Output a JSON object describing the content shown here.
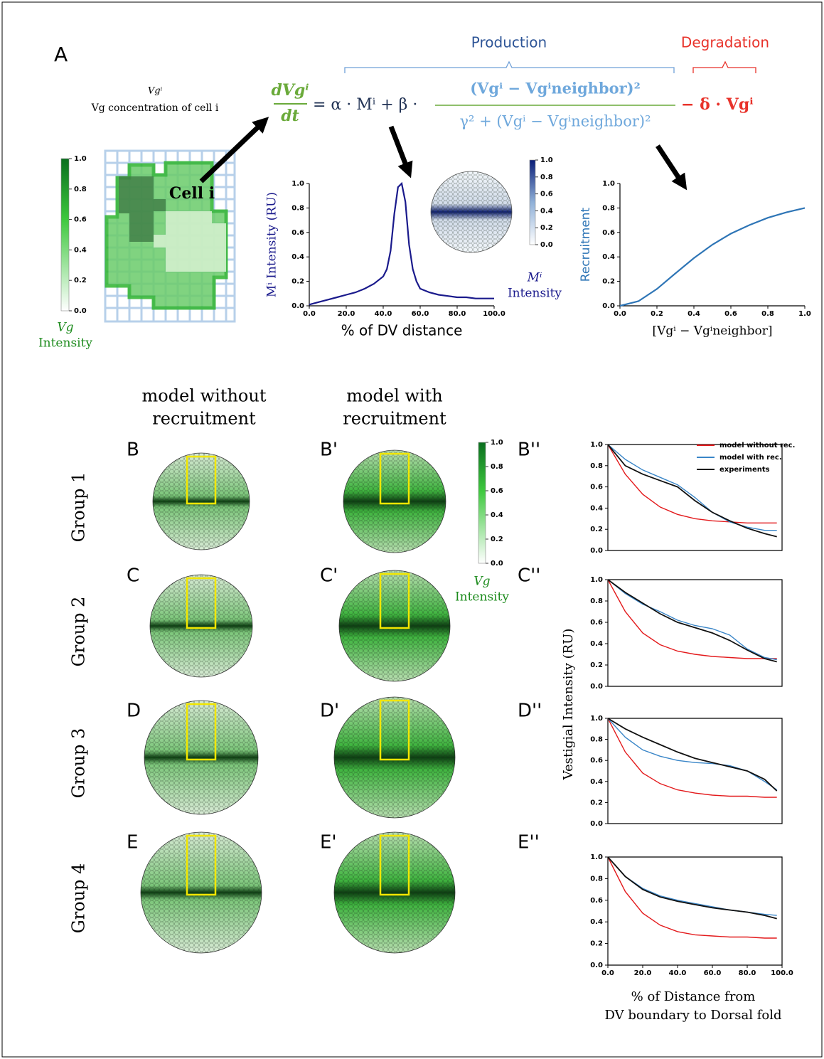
{
  "figure": {
    "panel_a": "A",
    "vg_symbol": "Vgⁱ",
    "vg_caption": "Vg concentration of cell i",
    "cell_label": "Cell i",
    "equation": {
      "lhs_numerator": "dVgⁱ",
      "lhs_denominator": "dt",
      "terms": "= α · Mⁱ + β ·",
      "frac_numerator": "(Vgⁱ − Vgⁱneighbor)²",
      "frac_denominator": "γ² + (Vgⁱ − Vgⁱneighbor)²",
      "degradation_term": "− δ · Vgⁱ"
    },
    "production": "Production",
    "degradation": "Degradation",
    "vg_colorbar_top": {
      "ticks": [
        {
          "value": 0,
          "label": "0.0"
        },
        0.2,
        0.4,
        0.6,
        0.8,
        {
          "value": 1,
          "label": "1.0"
        }
      ],
      "label": [
        "Vg",
        "Intensity"
      ]
    },
    "m_colorbar": {
      "ticks": [
        {
          "value": 0,
          "label": "0.0"
        },
        0.2,
        0.4,
        0.6,
        0.8,
        {
          "value": 1,
          "label": "1.0"
        }
      ],
      "label": [
        "Mⁱ",
        "Intensity"
      ]
    },
    "vg_colorbar_bottom": {
      "ticks": [
        {
          "value": 0,
          "label": "0.0"
        },
        0.2,
        0.4,
        0.6,
        0.8,
        {
          "value": 1,
          "label": "1.0"
        }
      ],
      "label": [
        "Vg",
        "Intensity"
      ]
    },
    "column_titles": [
      [
        "model without",
        "recruitment"
      ],
      [
        "model with",
        "recruitment"
      ]
    ],
    "rows": [
      {
        "group": "Group 1",
        "letters": [
          "B",
          "B'",
          "B''"
        ]
      },
      {
        "group": "Group 2",
        "letters": [
          "C",
          "C'",
          "C''"
        ]
      },
      {
        "group": "Group 3",
        "letters": [
          "D",
          "D'",
          "D''"
        ]
      },
      {
        "group": "Group 4",
        "letters": [
          "E",
          "E'",
          "E''"
        ]
      }
    ],
    "shared_ylabel": "Vestigial Intensity (RU)",
    "shared_xlabel": [
      "% of Distance from",
      "DV boundary to Dorsal fold"
    ]
  },
  "chart_data": [
    {
      "type": "line",
      "xlabel": "% of DV distance",
      "ylabel": "Mⁱ Intensity (RU)",
      "color": "#1a1a8c",
      "x": [
        0,
        5,
        10,
        15,
        20,
        25,
        30,
        35,
        40,
        42,
        44,
        46,
        48,
        50,
        52,
        54,
        56,
        58,
        60,
        65,
        70,
        75,
        80,
        85,
        90,
        95,
        100
      ],
      "values": [
        0.01,
        0.03,
        0.05,
        0.07,
        0.09,
        0.11,
        0.14,
        0.18,
        0.24,
        0.3,
        0.45,
        0.75,
        0.97,
        1.0,
        0.85,
        0.5,
        0.3,
        0.2,
        0.14,
        0.11,
        0.09,
        0.08,
        0.07,
        0.07,
        0.06,
        0.06,
        0.06
      ],
      "xlim": [
        0,
        100
      ],
      "ylim": [
        0,
        1
      ],
      "xticks": [
        {
          "value": 0,
          "label": "0.0"
        },
        {
          "value": 20,
          "label": "20.0"
        },
        {
          "value": 40,
          "label": "40.0"
        },
        {
          "value": 60,
          "label": "60.0"
        },
        {
          "value": 80,
          "label": "80.0"
        },
        {
          "value": 100,
          "label": "100.0"
        }
      ],
      "yticks": [
        {
          "value": 0,
          "label": "0.0"
        },
        0.2,
        0.4,
        0.6,
        0.8,
        {
          "value": 1,
          "label": "1.0"
        }
      ]
    },
    {
      "type": "line",
      "xlabel": "[Vgⁱ − Vgⁱneighbor]",
      "ylabel": "Recruitment",
      "color": "#2e75b6",
      "x": [
        0,
        0.1,
        0.2,
        0.3,
        0.4,
        0.5,
        0.6,
        0.7,
        0.8,
        0.9,
        1.0
      ],
      "values": [
        0,
        0.038,
        0.138,
        0.265,
        0.39,
        0.5,
        0.59,
        0.66,
        0.72,
        0.764,
        0.8
      ],
      "xlim": [
        0,
        1
      ],
      "ylim": [
        0,
        1
      ],
      "xticks": [
        {
          "value": 0,
          "label": "0.0"
        },
        0.2,
        0.4,
        0.6,
        0.8,
        {
          "value": 1,
          "label": "1.0"
        }
      ],
      "yticks": [
        {
          "value": 0,
          "label": "0.0"
        },
        0.2,
        0.4,
        0.6,
        0.8,
        {
          "value": 1,
          "label": "1.0"
        }
      ]
    },
    {
      "type": "line",
      "legend": "upper right",
      "x": [
        0,
        10,
        20,
        30,
        40,
        50,
        60,
        70,
        80,
        90,
        97
      ],
      "xlim": [
        0,
        100
      ],
      "ylim": [
        0,
        1
      ],
      "yticks": [
        {
          "value": 0,
          "label": "0.0"
        },
        0.2,
        0.4,
        0.6,
        0.8,
        {
          "value": 1,
          "label": "1.0"
        }
      ],
      "series": [
        {
          "name": "model without rec.",
          "color": "#e31a1c",
          "values": [
            1.0,
            0.72,
            0.53,
            0.41,
            0.34,
            0.3,
            0.28,
            0.27,
            0.26,
            0.26,
            0.26
          ]
        },
        {
          "name": "model with rec.",
          "color": "#3a86c8",
          "values": [
            1.0,
            0.86,
            0.76,
            0.69,
            0.62,
            0.5,
            0.36,
            0.27,
            0.22,
            0.19,
            0.19
          ]
        },
        {
          "name": "experiments",
          "color": "#111111",
          "values": [
            1.0,
            0.8,
            0.72,
            0.66,
            0.6,
            0.47,
            0.36,
            0.28,
            0.21,
            0.16,
            0.13
          ]
        }
      ]
    },
    {
      "type": "line",
      "x": [
        0,
        10,
        20,
        30,
        40,
        50,
        60,
        70,
        80,
        90,
        97
      ],
      "xlim": [
        0,
        100
      ],
      "ylim": [
        0,
        1
      ],
      "yticks": [
        {
          "value": 0,
          "label": "0.0"
        },
        0.2,
        0.4,
        0.6,
        0.8,
        {
          "value": 1,
          "label": "1.0"
        }
      ],
      "series": [
        {
          "color": "#e31a1c",
          "values": [
            1.0,
            0.7,
            0.5,
            0.39,
            0.33,
            0.3,
            0.28,
            0.27,
            0.26,
            0.26,
            0.26
          ]
        },
        {
          "color": "#3a86c8",
          "values": [
            1.0,
            0.87,
            0.77,
            0.7,
            0.62,
            0.57,
            0.54,
            0.48,
            0.35,
            0.27,
            0.25
          ]
        },
        {
          "color": "#111111",
          "values": [
            1.0,
            0.88,
            0.78,
            0.68,
            0.6,
            0.55,
            0.5,
            0.43,
            0.34,
            0.26,
            0.23
          ]
        }
      ]
    },
    {
      "type": "line",
      "x": [
        0,
        10,
        20,
        30,
        40,
        50,
        60,
        70,
        80,
        90,
        97
      ],
      "xlim": [
        0,
        100
      ],
      "ylim": [
        0,
        1
      ],
      "yticks": [
        {
          "value": 0,
          "label": "0.0"
        },
        0.2,
        0.4,
        0.6,
        0.8,
        {
          "value": 1,
          "label": "1.0"
        }
      ],
      "series": [
        {
          "color": "#e31a1c",
          "values": [
            1.0,
            0.68,
            0.48,
            0.38,
            0.32,
            0.29,
            0.27,
            0.26,
            0.26,
            0.25,
            0.25
          ]
        },
        {
          "color": "#3a86c8",
          "values": [
            1.0,
            0.82,
            0.7,
            0.64,
            0.6,
            0.58,
            0.57,
            0.55,
            0.5,
            0.4,
            0.32
          ]
        },
        {
          "color": "#111111",
          "values": [
            1.0,
            0.9,
            0.82,
            0.75,
            0.68,
            0.62,
            0.58,
            0.54,
            0.5,
            0.42,
            0.31
          ]
        }
      ]
    },
    {
      "type": "line",
      "x": [
        0,
        10,
        20,
        30,
        40,
        50,
        60,
        70,
        80,
        90,
        97
      ],
      "xlim": [
        0,
        100
      ],
      "ylim": [
        0,
        1
      ],
      "xticks": [
        {
          "value": 0,
          "label": "0.0"
        },
        {
          "value": 20,
          "label": "20.0"
        },
        {
          "value": 40,
          "label": "40.0"
        },
        {
          "value": 60,
          "label": "60.0"
        },
        {
          "value": 80,
          "label": "80.0"
        },
        {
          "value": 100,
          "label": "100.0"
        }
      ],
      "yticks": [
        {
          "value": 0,
          "label": "0.0"
        },
        0.2,
        0.4,
        0.6,
        0.8,
        {
          "value": 1,
          "label": "1.0"
        }
      ],
      "series": [
        {
          "color": "#e31a1c",
          "values": [
            1.0,
            0.68,
            0.48,
            0.37,
            0.31,
            0.28,
            0.27,
            0.26,
            0.26,
            0.25,
            0.25
          ]
        },
        {
          "color": "#3a86c8",
          "values": [
            1.0,
            0.82,
            0.71,
            0.64,
            0.6,
            0.57,
            0.54,
            0.51,
            0.49,
            0.47,
            0.46
          ]
        },
        {
          "color": "#111111",
          "values": [
            1.0,
            0.82,
            0.7,
            0.63,
            0.59,
            0.56,
            0.53,
            0.51,
            0.49,
            0.46,
            0.43
          ]
        }
      ]
    }
  ]
}
